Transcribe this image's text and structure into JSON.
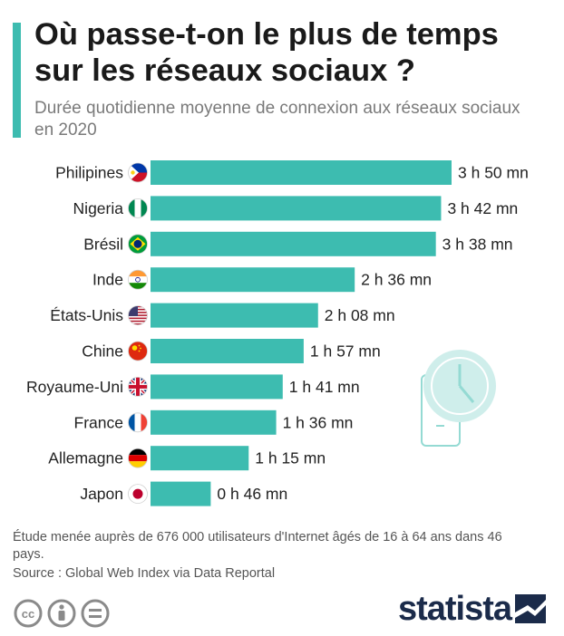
{
  "header": {
    "title": "Où passe-t-on le plus de temps sur les réseaux sociaux ?",
    "subtitle": "Durée quotidienne moyenne de connexion aux réseaux sociaux en 2020"
  },
  "colors": {
    "bar": "#3dbcb0",
    "accent": "#3dbcb0",
    "brand": "#1b2b4a"
  },
  "chart_data": {
    "type": "bar",
    "orientation": "horizontal",
    "categories": [
      "Philipines",
      "Nigeria",
      "Brésil",
      "Inde",
      "États-Unis",
      "Chine",
      "Royaume-Uni",
      "France",
      "Allemagne",
      "Japon"
    ],
    "values": [
      230,
      222,
      218,
      156,
      128,
      117,
      101,
      96,
      75,
      46
    ],
    "value_labels": [
      "3 h 50 mn",
      "3 h 42 mn",
      "3 h 38 mn",
      "2 h 36 mn",
      "2 h 08 mn",
      "1 h 57 mn",
      "1 h 41 mn",
      "1 h 36 mn",
      "1 h 15 mn",
      "0 h 46 mn"
    ],
    "flags": [
      "philippines",
      "nigeria",
      "brazil",
      "india",
      "usa",
      "china",
      "uk",
      "france",
      "germany",
      "japan"
    ],
    "title": "",
    "xlabel": "",
    "ylabel": "",
    "xlim": [
      0,
      230
    ],
    "grid": false,
    "legend": "none"
  },
  "footer": {
    "note": "Étude menée auprès de 676 000 utilisateurs d'Internet âgés de 16 à 64 ans dans 46 pays.",
    "source": "Source : Global Web Index via Data Reportal",
    "brand": "statista"
  },
  "icons": [
    "phone-clock-icon",
    "cc-icon",
    "attribution-icon",
    "no-derivatives-icon",
    "statista-logo-icon"
  ]
}
